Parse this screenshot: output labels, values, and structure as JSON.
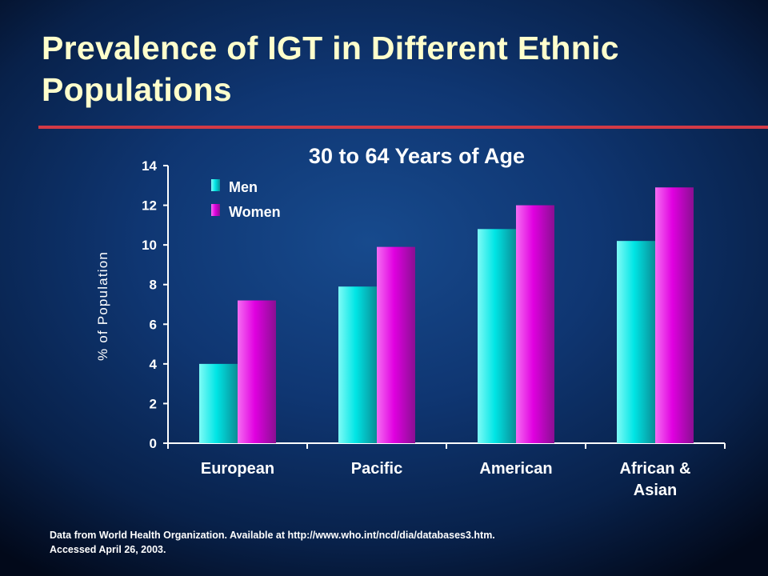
{
  "slide": {
    "title": "Prevalence of IGT in Different Ethnic Populations",
    "footnote_lines": [
      "Data from World Health Organization. Available  at http://www.who.int/ncd/dia/databases3.htm.",
      "Accessed April 26, 2003."
    ],
    "colors": {
      "background": "#0f3672",
      "title_text": "#ffffcc",
      "rule": "#d23a46",
      "axis_text": "#ffffff"
    }
  },
  "chart_data": {
    "type": "bar",
    "title": "30 to 64 Years of Age",
    "xlabel": "",
    "ylabel": "% of Population",
    "ylim": [
      0,
      14
    ],
    "yticks": [
      0,
      2,
      4,
      6,
      8,
      10,
      12,
      14
    ],
    "categories": [
      [
        "European"
      ],
      [
        "Pacific"
      ],
      [
        "American"
      ],
      [
        "African &",
        "Asian"
      ]
    ],
    "series": [
      {
        "name": "Men",
        "values": [
          4.0,
          7.9,
          10.8,
          10.2
        ],
        "color": "#00e5e5",
        "color_light": "#7ffbf6",
        "color_dark": "#0a8d96"
      },
      {
        "name": "Women",
        "values": [
          7.2,
          9.9,
          12.0,
          12.9
        ],
        "color": "#e000e0",
        "color_light": "#f56df2",
        "color_dark": "#8a0f92"
      }
    ],
    "legend_position": "top-left",
    "grid": false
  }
}
